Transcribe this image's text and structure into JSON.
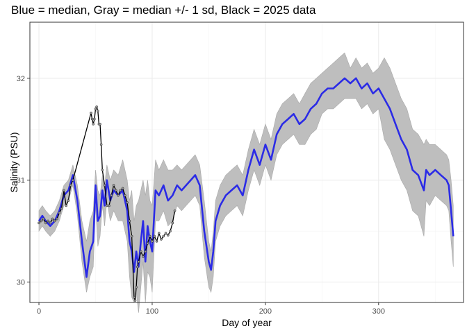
{
  "chart_data": {
    "type": "line",
    "title": "Blue = median, Gray = median +/- 1 sd, Black = 2025 data",
    "xlabel": "Day of year",
    "ylabel": "Salinity (PSU)",
    "xlim": [
      -8,
      375
    ],
    "ylim": [
      29.8,
      32.55
    ],
    "x_ticks": [
      0,
      100,
      200,
      300
    ],
    "y_ticks": [
      30,
      31,
      32
    ],
    "grid": true,
    "legend": "none",
    "colors": {
      "median": "#2b2be6",
      "band": "#bebebe",
      "band_edge": "#a9a9a9",
      "observed": "#000000",
      "observed_points": "#9a9a9a",
      "panel_border": "#333333",
      "grid_major": "#ebebeb",
      "grid_minor": "#f5f5f5"
    },
    "series": [
      {
        "role": "median",
        "x": [
          0,
          3,
          6,
          10,
          14,
          18,
          22,
          26,
          30,
          34,
          38,
          42,
          45,
          48,
          50,
          52,
          54,
          56,
          58,
          60,
          63,
          66,
          70,
          74,
          78,
          80,
          82,
          84,
          86,
          88,
          90,
          92,
          94,
          96,
          98,
          100,
          103,
          106,
          110,
          114,
          118,
          122,
          126,
          130,
          134,
          138,
          142,
          146,
          150,
          152,
          154,
          156,
          160,
          165,
          170,
          175,
          180,
          185,
          190,
          195,
          200,
          205,
          210,
          215,
          220,
          225,
          230,
          235,
          240,
          245,
          250,
          255,
          260,
          265,
          270,
          275,
          280,
          285,
          290,
          295,
          300,
          305,
          310,
          315,
          320,
          325,
          330,
          335,
          340,
          342,
          345,
          350,
          355,
          360,
          362,
          364,
          366
        ],
        "y": [
          30.6,
          30.65,
          30.6,
          30.55,
          30.6,
          30.7,
          30.85,
          30.9,
          31.05,
          30.8,
          30.4,
          30.05,
          30.3,
          30.4,
          30.95,
          30.6,
          30.65,
          30.9,
          30.75,
          31.0,
          30.8,
          30.9,
          30.85,
          30.9,
          30.7,
          30.4,
          30.3,
          30.1,
          30.3,
          30.15,
          30.4,
          30.6,
          30.2,
          30.55,
          30.4,
          30.3,
          30.9,
          30.85,
          30.95,
          30.8,
          30.85,
          30.95,
          30.9,
          30.95,
          31.0,
          31.05,
          30.95,
          30.5,
          30.2,
          30.12,
          30.3,
          30.6,
          30.75,
          30.85,
          30.9,
          30.95,
          30.85,
          31.1,
          31.3,
          31.15,
          31.35,
          31.2,
          31.45,
          31.55,
          31.6,
          31.65,
          31.55,
          31.6,
          31.7,
          31.75,
          31.85,
          31.9,
          31.9,
          31.95,
          32.0,
          31.95,
          32.0,
          31.9,
          31.95,
          31.85,
          31.9,
          31.8,
          31.7,
          31.55,
          31.4,
          31.3,
          31.1,
          31.05,
          30.9,
          31.1,
          31.05,
          31.1,
          31.05,
          31.0,
          30.95,
          30.7,
          30.45
        ]
      },
      {
        "role": "band_upper",
        "x": [
          0,
          3,
          6,
          10,
          14,
          18,
          22,
          26,
          30,
          34,
          38,
          42,
          45,
          48,
          50,
          52,
          54,
          56,
          58,
          60,
          63,
          66,
          70,
          74,
          78,
          80,
          82,
          84,
          86,
          88,
          90,
          92,
          94,
          96,
          98,
          100,
          103,
          106,
          110,
          114,
          118,
          122,
          126,
          130,
          134,
          138,
          142,
          146,
          150,
          152,
          154,
          156,
          160,
          165,
          170,
          175,
          180,
          185,
          190,
          195,
          200,
          205,
          210,
          215,
          220,
          225,
          230,
          235,
          240,
          245,
          250,
          255,
          260,
          265,
          270,
          275,
          280,
          285,
          290,
          295,
          300,
          305,
          310,
          315,
          320,
          325,
          330,
          335,
          340,
          342,
          345,
          350,
          355,
          360,
          362,
          364,
          366
        ],
        "y": [
          30.7,
          30.75,
          30.7,
          30.65,
          30.7,
          30.8,
          30.95,
          31.0,
          31.15,
          30.95,
          30.6,
          30.4,
          30.6,
          30.7,
          31.1,
          30.9,
          30.85,
          31.05,
          30.95,
          31.15,
          31.0,
          31.1,
          31.05,
          31.2,
          31.0,
          30.8,
          30.9,
          30.6,
          30.75,
          30.8,
          30.9,
          31.0,
          30.85,
          31.0,
          30.8,
          30.75,
          31.2,
          31.1,
          31.2,
          31.1,
          31.1,
          31.15,
          31.1,
          31.15,
          31.2,
          31.25,
          31.15,
          30.8,
          30.4,
          30.3,
          30.5,
          30.8,
          30.95,
          31.05,
          31.1,
          31.15,
          31.05,
          31.3,
          31.5,
          31.35,
          31.55,
          31.4,
          31.65,
          31.75,
          31.8,
          31.85,
          31.75,
          31.85,
          31.95,
          32.0,
          32.05,
          32.1,
          32.15,
          32.2,
          32.25,
          32.1,
          32.2,
          32.1,
          32.15,
          32.05,
          32.1,
          32.2,
          32.1,
          31.95,
          31.8,
          31.7,
          31.5,
          31.45,
          31.35,
          31.4,
          31.35,
          31.35,
          31.3,
          31.25,
          31.2,
          31.0,
          30.75
        ]
      },
      {
        "role": "band_lower",
        "x": [
          0,
          3,
          6,
          10,
          14,
          18,
          22,
          26,
          30,
          34,
          38,
          42,
          45,
          48,
          50,
          52,
          54,
          56,
          58,
          60,
          63,
          66,
          70,
          74,
          78,
          80,
          82,
          84,
          86,
          88,
          90,
          92,
          94,
          96,
          98,
          100,
          103,
          106,
          110,
          114,
          118,
          122,
          126,
          130,
          134,
          138,
          142,
          146,
          150,
          152,
          154,
          156,
          160,
          165,
          170,
          175,
          180,
          185,
          190,
          195,
          200,
          205,
          210,
          215,
          220,
          225,
          230,
          235,
          240,
          245,
          250,
          255,
          260,
          265,
          270,
          275,
          280,
          285,
          290,
          295,
          300,
          305,
          310,
          315,
          320,
          325,
          330,
          335,
          340,
          342,
          345,
          350,
          355,
          360,
          362,
          364,
          366
        ],
        "y": [
          30.5,
          30.55,
          30.5,
          30.45,
          30.5,
          30.6,
          30.75,
          30.8,
          30.95,
          30.65,
          30.2,
          29.9,
          30.05,
          30.15,
          30.75,
          30.35,
          30.45,
          30.75,
          30.55,
          30.8,
          30.6,
          30.7,
          30.6,
          30.6,
          30.4,
          30.05,
          29.85,
          29.8,
          29.9,
          29.7,
          29.95,
          30.2,
          29.8,
          30.1,
          30.05,
          29.9,
          30.6,
          30.6,
          30.7,
          30.55,
          30.6,
          30.75,
          30.7,
          30.75,
          30.8,
          30.85,
          30.75,
          30.25,
          29.95,
          29.9,
          30.05,
          30.4,
          30.55,
          30.65,
          30.7,
          30.75,
          30.65,
          30.9,
          31.1,
          30.95,
          31.15,
          31.0,
          31.25,
          31.35,
          31.4,
          31.45,
          31.35,
          31.35,
          31.45,
          31.5,
          31.65,
          31.7,
          31.7,
          31.75,
          31.8,
          31.8,
          31.8,
          31.7,
          31.75,
          31.65,
          31.7,
          31.4,
          31.3,
          31.15,
          31.0,
          30.9,
          30.7,
          30.65,
          30.45,
          30.8,
          30.75,
          30.85,
          30.8,
          30.75,
          30.7,
          30.4,
          30.15
        ]
      },
      {
        "role": "observed",
        "x": [
          0,
          2,
          4,
          6,
          8,
          10,
          12,
          14,
          16,
          18,
          20,
          22,
          24,
          26,
          28,
          30,
          46,
          47,
          48,
          49,
          50,
          51,
          52,
          53,
          54,
          55,
          56,
          58,
          60,
          62,
          64,
          66,
          68,
          70,
          72,
          74,
          76,
          78,
          80,
          82,
          84,
          85,
          86,
          87,
          88,
          90,
          92,
          94,
          96,
          98,
          100,
          102,
          104,
          106,
          108,
          110,
          112,
          114,
          116,
          118,
          120
        ],
        "y": [
          30.58,
          30.6,
          30.62,
          30.58,
          30.6,
          30.58,
          30.62,
          30.6,
          30.62,
          30.68,
          30.72,
          30.9,
          30.75,
          30.8,
          30.95,
          31.0,
          31.66,
          31.6,
          31.55,
          31.6,
          31.7,
          31.72,
          31.68,
          31.55,
          31.55,
          31.35,
          31.1,
          30.95,
          30.75,
          30.75,
          30.85,
          30.95,
          30.9,
          30.85,
          30.9,
          30.92,
          30.85,
          30.78,
          30.6,
          30.45,
          29.85,
          29.82,
          29.95,
          30.15,
          30.2,
          30.3,
          30.25,
          30.3,
          30.38,
          30.45,
          30.4,
          30.45,
          30.4,
          30.48,
          30.42,
          30.45,
          30.48,
          30.46,
          30.5,
          30.58,
          30.7
        ]
      }
    ]
  }
}
